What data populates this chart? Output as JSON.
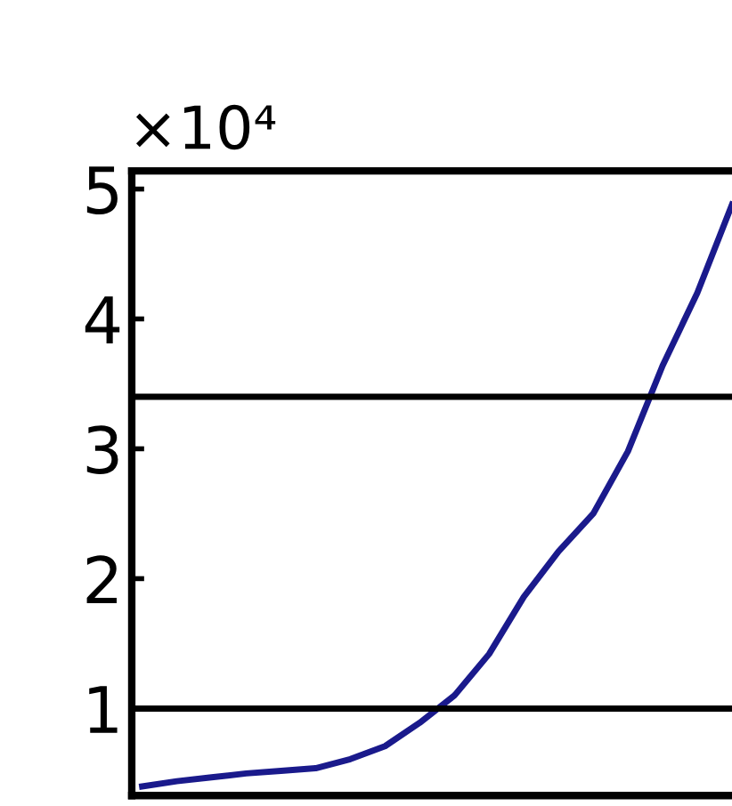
{
  "chart_data": {
    "type": "line",
    "categories": [
      null,
      null,
      null,
      null,
      null,
      null,
      null,
      null,
      null,
      null,
      null,
      null,
      null,
      null,
      null,
      null,
      null,
      null
    ],
    "series": [
      {
        "color": "#1a1a8c",
        "values": [
          0.4,
          0.44,
          0.47,
          0.5,
          0.52,
          0.54,
          0.61,
          0.71,
          0.89,
          1.1,
          1.42,
          1.86,
          2.21,
          2.5,
          2.98,
          3.64,
          4.2,
          4.88
        ]
      }
    ],
    "ylim": [
      0.33,
      5.14
    ],
    "yticks": [
      1,
      2,
      3,
      4,
      5
    ],
    "ref_lines": [
      {
        "axis": "y",
        "value": 1.0,
        "color": "#000000"
      },
      {
        "axis": "y",
        "value": 3.4,
        "color": "#000000"
      }
    ],
    "annotations": [
      "×10⁴"
    ],
    "tick_labels": "y",
    "grid": false,
    "legend": false,
    "marker": "none",
    "line_style": "solid"
  }
}
